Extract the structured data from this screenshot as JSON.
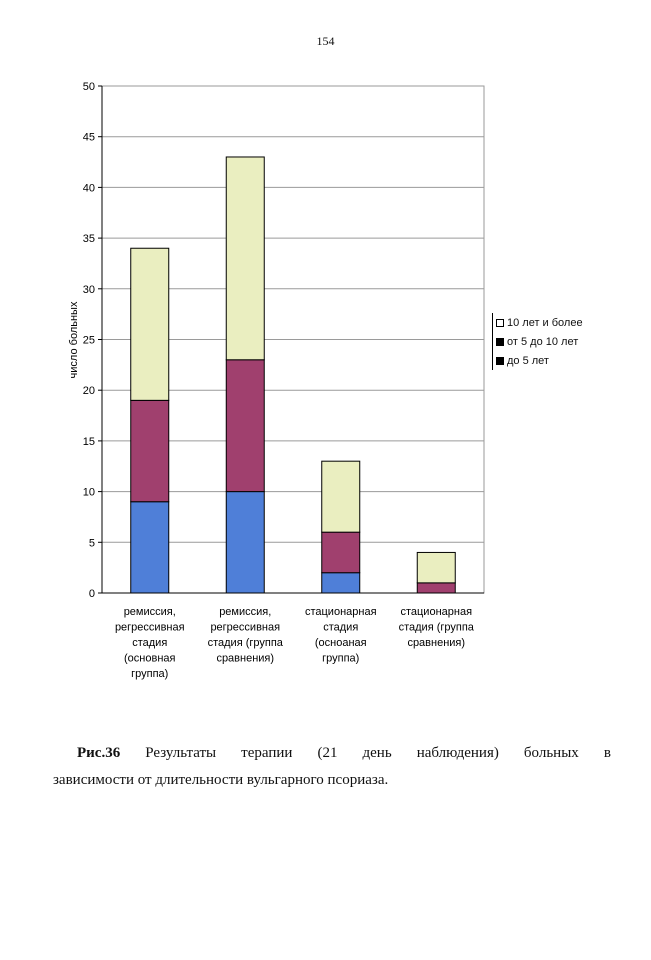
{
  "page_number": "154",
  "caption": {
    "figure_label": "Рис.36",
    "line1_words": [
      "Результаты",
      "терапии",
      "(21",
      "день",
      "наблюдения)",
      "больных",
      "в"
    ],
    "line2": "зависимости от длительности вульгарного псориаза."
  },
  "legend": {
    "items": [
      {
        "label": "10 лет и более",
        "color": "#FFFFFF"
      },
      {
        "label": "от 5 до 10 лет",
        "color": "#000000"
      },
      {
        "label": "до 5 лет",
        "color": "#000000"
      }
    ]
  },
  "chart_data": {
    "type": "bar",
    "stacked": true,
    "ylabel": "число больных",
    "ylim": [
      0,
      50
    ],
    "yticks": [
      0,
      5,
      10,
      15,
      20,
      25,
      30,
      35,
      40,
      45,
      50
    ],
    "grid": true,
    "legend_position": "right",
    "categories": [
      [
        "ремиссия,",
        "регрессивная",
        "стадия",
        "(основная",
        "группа)"
      ],
      [
        "ремиссия,",
        "регрессивная",
        "стадия (группа",
        "сравнения)"
      ],
      [
        "стационарная",
        "стадия",
        "(осноаная",
        "группа)"
      ],
      [
        "стационарная",
        "стадия (группа",
        "сравнения)"
      ]
    ],
    "series": [
      {
        "name": "до 5 лет",
        "color": "#4F7FD8",
        "values": [
          9,
          10,
          2,
          0
        ]
      },
      {
        "name": "от 5 до 10 лет",
        "color": "#A0406E",
        "values": [
          10,
          13,
          4,
          1
        ]
      },
      {
        "name": "10 лет и более",
        "color": "#EAEEC0",
        "values": [
          15,
          20,
          7,
          3
        ]
      }
    ]
  }
}
